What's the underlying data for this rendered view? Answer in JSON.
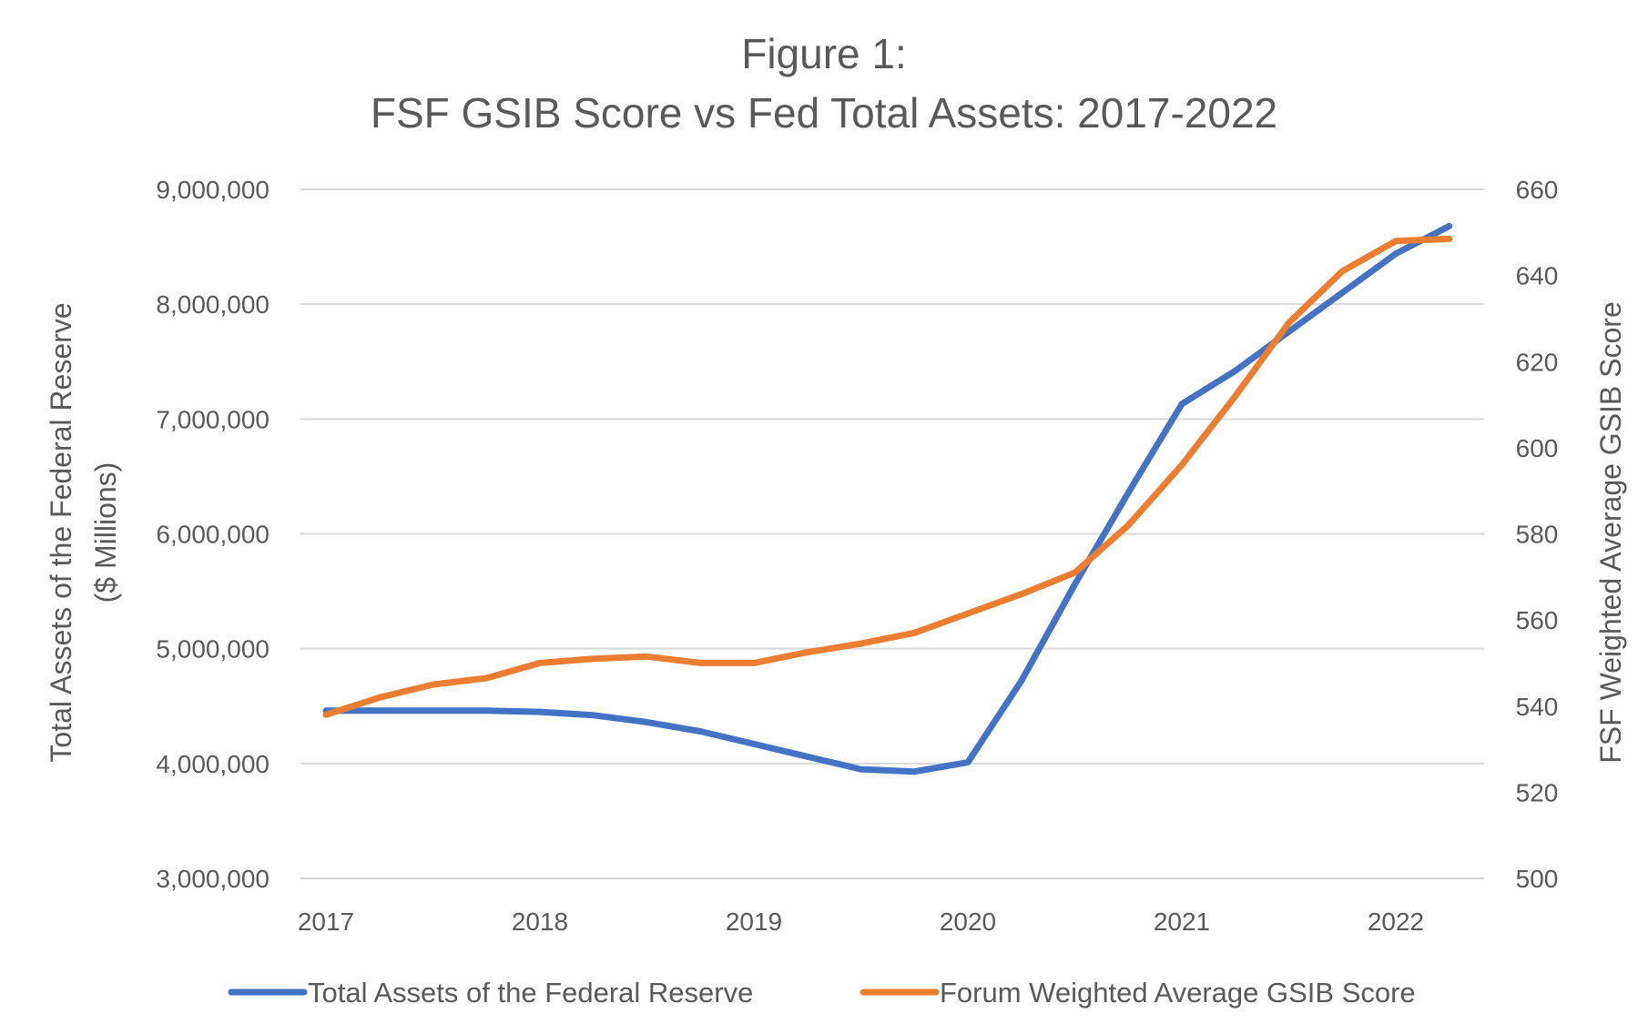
{
  "chart_data": {
    "type": "line",
    "title_line1": "Figure 1:",
    "title_line2": "FSF GSIB Score vs Fed Total Assets: 2017-2022",
    "x_tick_labels": [
      "2017",
      "2018",
      "2019",
      "2020",
      "2021",
      "2022"
    ],
    "x_range": [
      2017,
      2022.35
    ],
    "y_left": {
      "label_line1": "Total Assets of the Federal Reserve",
      "label_line2": "($ Millions)",
      "range": [
        3000000,
        9000000
      ],
      "ticks": [
        3000000,
        4000000,
        5000000,
        6000000,
        7000000,
        8000000,
        9000000
      ],
      "tick_labels": [
        "3,000,000",
        "4,000,000",
        "5,000,000",
        "6,000,000",
        "7,000,000",
        "8,000,000",
        "9,000,000"
      ]
    },
    "y_right": {
      "label": "FSF Weighted Average GSIB Score",
      "range": [
        500,
        660
      ],
      "ticks": [
        500,
        520,
        540,
        560,
        580,
        600,
        620,
        640,
        660
      ],
      "tick_labels": [
        "500",
        "520",
        "540",
        "560",
        "580",
        "600",
        "620",
        "640",
        "660"
      ]
    },
    "grid": true,
    "legend_position": "bottom",
    "series": [
      {
        "name": "Total Assets of the Federal Reserve",
        "axis": "left",
        "color": "#4472c4",
        "x": [
          2017.0,
          2017.25,
          2017.5,
          2017.75,
          2018.0,
          2018.25,
          2018.5,
          2018.75,
          2019.0,
          2019.25,
          2019.5,
          2019.75,
          2020.0,
          2020.25,
          2020.5,
          2020.75,
          2021.0,
          2021.25,
          2021.5,
          2021.75,
          2022.0,
          2022.25
        ],
        "values": [
          4460000,
          4460000,
          4460000,
          4460000,
          4450000,
          4420000,
          4360000,
          4280000,
          4170000,
          4060000,
          3950000,
          3930000,
          4010000,
          4720000,
          5560000,
          6360000,
          7130000,
          7420000,
          7760000,
          8100000,
          8440000,
          8680000
        ]
      },
      {
        "name": "Forum Weighted Average GSIB Score",
        "axis": "right",
        "color": "#ed7d31",
        "x": [
          2017.0,
          2017.25,
          2017.5,
          2017.75,
          2018.0,
          2018.25,
          2018.5,
          2018.75,
          2019.0,
          2019.25,
          2019.5,
          2019.75,
          2020.0,
          2020.25,
          2020.5,
          2020.75,
          2021.0,
          2021.25,
          2021.5,
          2021.75,
          2022.0,
          2022.25
        ],
        "values": [
          538,
          542,
          545,
          546.5,
          550,
          551,
          551.5,
          550,
          550,
          552.5,
          554.5,
          557,
          561.5,
          566,
          571,
          582,
          596,
          612,
          629,
          641,
          648,
          648.5
        ]
      }
    ]
  }
}
